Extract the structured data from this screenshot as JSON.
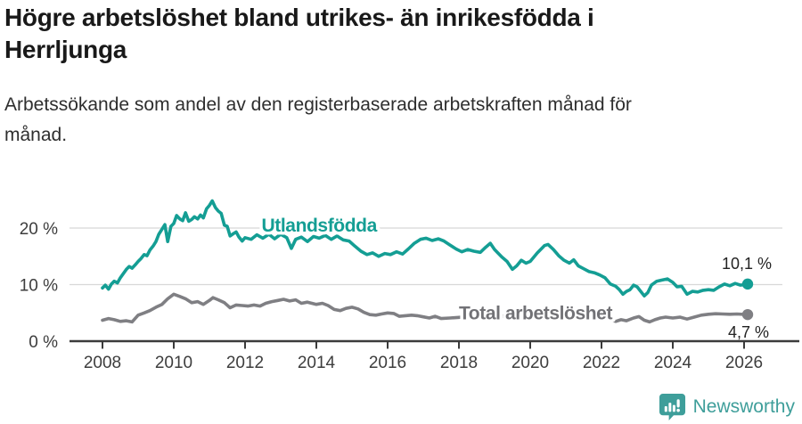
{
  "header": {
    "title": "Högre arbetslöshet bland utrikes- än inrikesfödda i Herrljunga",
    "subtitle": "Arbetssökande som andel av den registerbaserade arbetskraften månad för månad."
  },
  "chart_data": {
    "type": "line",
    "unit": "%",
    "grid": "horizontal-only",
    "xlim": [
      2007.3,
      2026.6
    ],
    "ylim": [
      0,
      26
    ],
    "x_ticks": [
      2008,
      2010,
      2012,
      2014,
      2016,
      2018,
      2020,
      2022,
      2024,
      2026
    ],
    "y_ticks": [
      {
        "value": 0,
        "label": "0 %"
      },
      {
        "value": 10,
        "label": "10 %"
      },
      {
        "value": 20,
        "label": "20 %"
      }
    ],
    "series": [
      {
        "id": "utlandsfodda",
        "name": "Utlandsfödda",
        "color": "#149E94",
        "label_color": "#149E94",
        "label_pos": {
          "year": 2014.08,
          "value": 20.5
        },
        "end_label": "10,1 %",
        "end_label_side": "above",
        "points": [
          [
            2008.0,
            9.4
          ],
          [
            2008.08,
            9.9
          ],
          [
            2008.17,
            9.2
          ],
          [
            2008.25,
            10.1
          ],
          [
            2008.33,
            10.6
          ],
          [
            2008.42,
            10.3
          ],
          [
            2008.5,
            11.2
          ],
          [
            2008.58,
            11.9
          ],
          [
            2008.67,
            12.7
          ],
          [
            2008.75,
            13.2
          ],
          [
            2008.83,
            12.9
          ],
          [
            2008.92,
            13.5
          ],
          [
            2009.0,
            14.1
          ],
          [
            2009.08,
            14.6
          ],
          [
            2009.17,
            15.3
          ],
          [
            2009.25,
            15.1
          ],
          [
            2009.33,
            16.1
          ],
          [
            2009.42,
            16.8
          ],
          [
            2009.5,
            17.6
          ],
          [
            2009.58,
            18.9
          ],
          [
            2009.67,
            19.8
          ],
          [
            2009.75,
            20.6
          ],
          [
            2009.83,
            17.6
          ],
          [
            2009.92,
            20.3
          ],
          [
            2010.0,
            20.8
          ],
          [
            2010.08,
            22.2
          ],
          [
            2010.17,
            21.6
          ],
          [
            2010.25,
            21.3
          ],
          [
            2010.33,
            22.7
          ],
          [
            2010.42,
            21.2
          ],
          [
            2010.5,
            21.5
          ],
          [
            2010.58,
            22.0
          ],
          [
            2010.67,
            21.6
          ],
          [
            2010.75,
            22.3
          ],
          [
            2010.83,
            21.8
          ],
          [
            2010.92,
            23.4
          ],
          [
            2011.0,
            24.0
          ],
          [
            2011.08,
            24.8
          ],
          [
            2011.17,
            23.6
          ],
          [
            2011.25,
            23.0
          ],
          [
            2011.33,
            22.6
          ],
          [
            2011.42,
            20.5
          ],
          [
            2011.5,
            20.3
          ],
          [
            2011.58,
            18.6
          ],
          [
            2011.67,
            19.0
          ],
          [
            2011.75,
            19.3
          ],
          [
            2011.83,
            18.4
          ],
          [
            2011.92,
            17.7
          ],
          [
            2012.0,
            18.3
          ],
          [
            2012.17,
            18.0
          ],
          [
            2012.33,
            18.8
          ],
          [
            2012.5,
            18.2
          ],
          [
            2012.67,
            18.9
          ],
          [
            2012.83,
            18.1
          ],
          [
            2013.0,
            18.9
          ],
          [
            2013.17,
            18.3
          ],
          [
            2013.3,
            16.4
          ],
          [
            2013.42,
            18.0
          ],
          [
            2013.58,
            18.4
          ],
          [
            2013.75,
            17.6
          ],
          [
            2013.92,
            18.5
          ],
          [
            2014.08,
            18.2
          ],
          [
            2014.25,
            18.7
          ],
          [
            2014.42,
            18.0
          ],
          [
            2014.58,
            18.6
          ],
          [
            2014.75,
            17.9
          ],
          [
            2014.92,
            17.7
          ],
          [
            2015.08,
            16.8
          ],
          [
            2015.25,
            15.9
          ],
          [
            2015.42,
            15.3
          ],
          [
            2015.58,
            15.6
          ],
          [
            2015.75,
            15.0
          ],
          [
            2015.92,
            15.5
          ],
          [
            2016.08,
            15.3
          ],
          [
            2016.25,
            15.8
          ],
          [
            2016.42,
            15.4
          ],
          [
            2016.58,
            16.3
          ],
          [
            2016.75,
            17.3
          ],
          [
            2016.92,
            18.0
          ],
          [
            2017.08,
            18.2
          ],
          [
            2017.25,
            17.8
          ],
          [
            2017.42,
            18.1
          ],
          [
            2017.58,
            17.7
          ],
          [
            2017.75,
            17.0
          ],
          [
            2017.92,
            16.3
          ],
          [
            2018.08,
            15.8
          ],
          [
            2018.25,
            16.2
          ],
          [
            2018.42,
            15.9
          ],
          [
            2018.6,
            15.7
          ],
          [
            2018.75,
            16.6
          ],
          [
            2018.88,
            17.3
          ],
          [
            2019.0,
            16.2
          ],
          [
            2019.2,
            14.9
          ],
          [
            2019.35,
            14.1
          ],
          [
            2019.5,
            12.7
          ],
          [
            2019.62,
            13.3
          ],
          [
            2019.75,
            14.3
          ],
          [
            2019.88,
            13.8
          ],
          [
            2020.0,
            14.1
          ],
          [
            2020.2,
            15.6
          ],
          [
            2020.4,
            16.9
          ],
          [
            2020.5,
            17.1
          ],
          [
            2020.65,
            16.2
          ],
          [
            2020.8,
            15.1
          ],
          [
            2020.95,
            14.3
          ],
          [
            2021.1,
            13.8
          ],
          [
            2021.22,
            14.4
          ],
          [
            2021.35,
            13.3
          ],
          [
            2021.5,
            12.8
          ],
          [
            2021.65,
            12.3
          ],
          [
            2021.8,
            12.1
          ],
          [
            2021.95,
            11.7
          ],
          [
            2022.1,
            11.2
          ],
          [
            2022.25,
            10.1
          ],
          [
            2022.4,
            9.7
          ],
          [
            2022.5,
            9.1
          ],
          [
            2022.6,
            8.3
          ],
          [
            2022.7,
            8.8
          ],
          [
            2022.8,
            9.1
          ],
          [
            2022.9,
            9.9
          ],
          [
            2023.0,
            9.6
          ],
          [
            2023.1,
            8.8
          ],
          [
            2023.2,
            8.0
          ],
          [
            2023.3,
            8.6
          ],
          [
            2023.4,
            9.9
          ],
          [
            2023.55,
            10.6
          ],
          [
            2023.7,
            10.8
          ],
          [
            2023.85,
            11.0
          ],
          [
            2024.0,
            10.4
          ],
          [
            2024.12,
            9.6
          ],
          [
            2024.25,
            9.7
          ],
          [
            2024.4,
            8.3
          ],
          [
            2024.55,
            8.8
          ],
          [
            2024.7,
            8.7
          ],
          [
            2024.85,
            9.0
          ],
          [
            2025.0,
            9.1
          ],
          [
            2025.15,
            9.0
          ],
          [
            2025.3,
            9.6
          ],
          [
            2025.45,
            10.1
          ],
          [
            2025.6,
            9.8
          ],
          [
            2025.75,
            10.2
          ],
          [
            2025.9,
            9.9
          ],
          [
            2026.1,
            10.1
          ]
        ]
      },
      {
        "id": "total",
        "name": "Total arbetslöshet",
        "color": "#7F7F83",
        "label_color": "#727276",
        "label_pos": {
          "year": 2020.15,
          "value": 5.0
        },
        "end_label": "4,7 %",
        "end_label_side": "below",
        "points": [
          [
            2008.0,
            3.7
          ],
          [
            2008.17,
            4.0
          ],
          [
            2008.33,
            3.8
          ],
          [
            2008.5,
            3.5
          ],
          [
            2008.67,
            3.6
          ],
          [
            2008.83,
            3.4
          ],
          [
            2009.0,
            4.6
          ],
          [
            2009.17,
            5.0
          ],
          [
            2009.33,
            5.4
          ],
          [
            2009.5,
            6.0
          ],
          [
            2009.67,
            6.5
          ],
          [
            2009.83,
            7.5
          ],
          [
            2010.0,
            8.3
          ],
          [
            2010.17,
            7.9
          ],
          [
            2010.33,
            7.5
          ],
          [
            2010.5,
            6.8
          ],
          [
            2010.67,
            7.0
          ],
          [
            2010.83,
            6.5
          ],
          [
            2011.0,
            7.2
          ],
          [
            2011.1,
            7.7
          ],
          [
            2011.25,
            7.3
          ],
          [
            2011.42,
            6.8
          ],
          [
            2011.58,
            5.9
          ],
          [
            2011.75,
            6.4
          ],
          [
            2011.92,
            6.3
          ],
          [
            2012.08,
            6.2
          ],
          [
            2012.25,
            6.4
          ],
          [
            2012.42,
            6.2
          ],
          [
            2012.58,
            6.7
          ],
          [
            2012.75,
            7.0
          ],
          [
            2012.92,
            7.2
          ],
          [
            2013.08,
            7.4
          ],
          [
            2013.25,
            7.1
          ],
          [
            2013.42,
            7.3
          ],
          [
            2013.58,
            6.7
          ],
          [
            2013.75,
            6.9
          ],
          [
            2014.0,
            6.5
          ],
          [
            2014.17,
            6.7
          ],
          [
            2014.33,
            6.3
          ],
          [
            2014.5,
            5.6
          ],
          [
            2014.67,
            5.4
          ],
          [
            2014.83,
            5.8
          ],
          [
            2015.0,
            6.0
          ],
          [
            2015.17,
            5.7
          ],
          [
            2015.33,
            5.1
          ],
          [
            2015.5,
            4.7
          ],
          [
            2015.67,
            4.6
          ],
          [
            2015.83,
            4.8
          ],
          [
            2016.0,
            5.0
          ],
          [
            2016.17,
            4.9
          ],
          [
            2016.33,
            4.4
          ],
          [
            2016.5,
            4.5
          ],
          [
            2016.67,
            4.6
          ],
          [
            2016.83,
            4.5
          ],
          [
            2017.0,
            4.3
          ],
          [
            2017.17,
            4.1
          ],
          [
            2017.33,
            4.4
          ],
          [
            2017.5,
            4.0
          ],
          [
            2017.75,
            4.1
          ],
          [
            2018.0,
            4.2
          ],
          [
            2018.33,
            4.4
          ],
          [
            2018.67,
            4.3
          ],
          [
            2019.0,
            4.3
          ],
          [
            2019.33,
            4.5
          ],
          [
            2019.67,
            4.4
          ],
          [
            2020.0,
            4.9
          ],
          [
            2020.33,
            5.5
          ],
          [
            2020.67,
            5.3
          ],
          [
            2021.0,
            5.1
          ],
          [
            2021.33,
            4.8
          ],
          [
            2021.67,
            4.5
          ],
          [
            2022.0,
            4.1
          ],
          [
            2022.25,
            3.8
          ],
          [
            2022.4,
            3.5
          ],
          [
            2022.55,
            3.8
          ],
          [
            2022.7,
            3.6
          ],
          [
            2022.9,
            4.1
          ],
          [
            2023.05,
            4.35
          ],
          [
            2023.2,
            3.7
          ],
          [
            2023.35,
            3.4
          ],
          [
            2023.5,
            3.8
          ],
          [
            2023.65,
            4.1
          ],
          [
            2023.8,
            4.25
          ],
          [
            2024.0,
            4.1
          ],
          [
            2024.2,
            4.25
          ],
          [
            2024.4,
            3.9
          ],
          [
            2024.6,
            4.25
          ],
          [
            2024.8,
            4.6
          ],
          [
            2025.0,
            4.75
          ],
          [
            2025.2,
            4.85
          ],
          [
            2025.4,
            4.8
          ],
          [
            2025.6,
            4.75
          ],
          [
            2025.8,
            4.8
          ],
          [
            2026.1,
            4.7
          ]
        ]
      }
    ]
  },
  "footer": {
    "brand": "Newsworthy",
    "brand_color": "#3E9E9A"
  }
}
